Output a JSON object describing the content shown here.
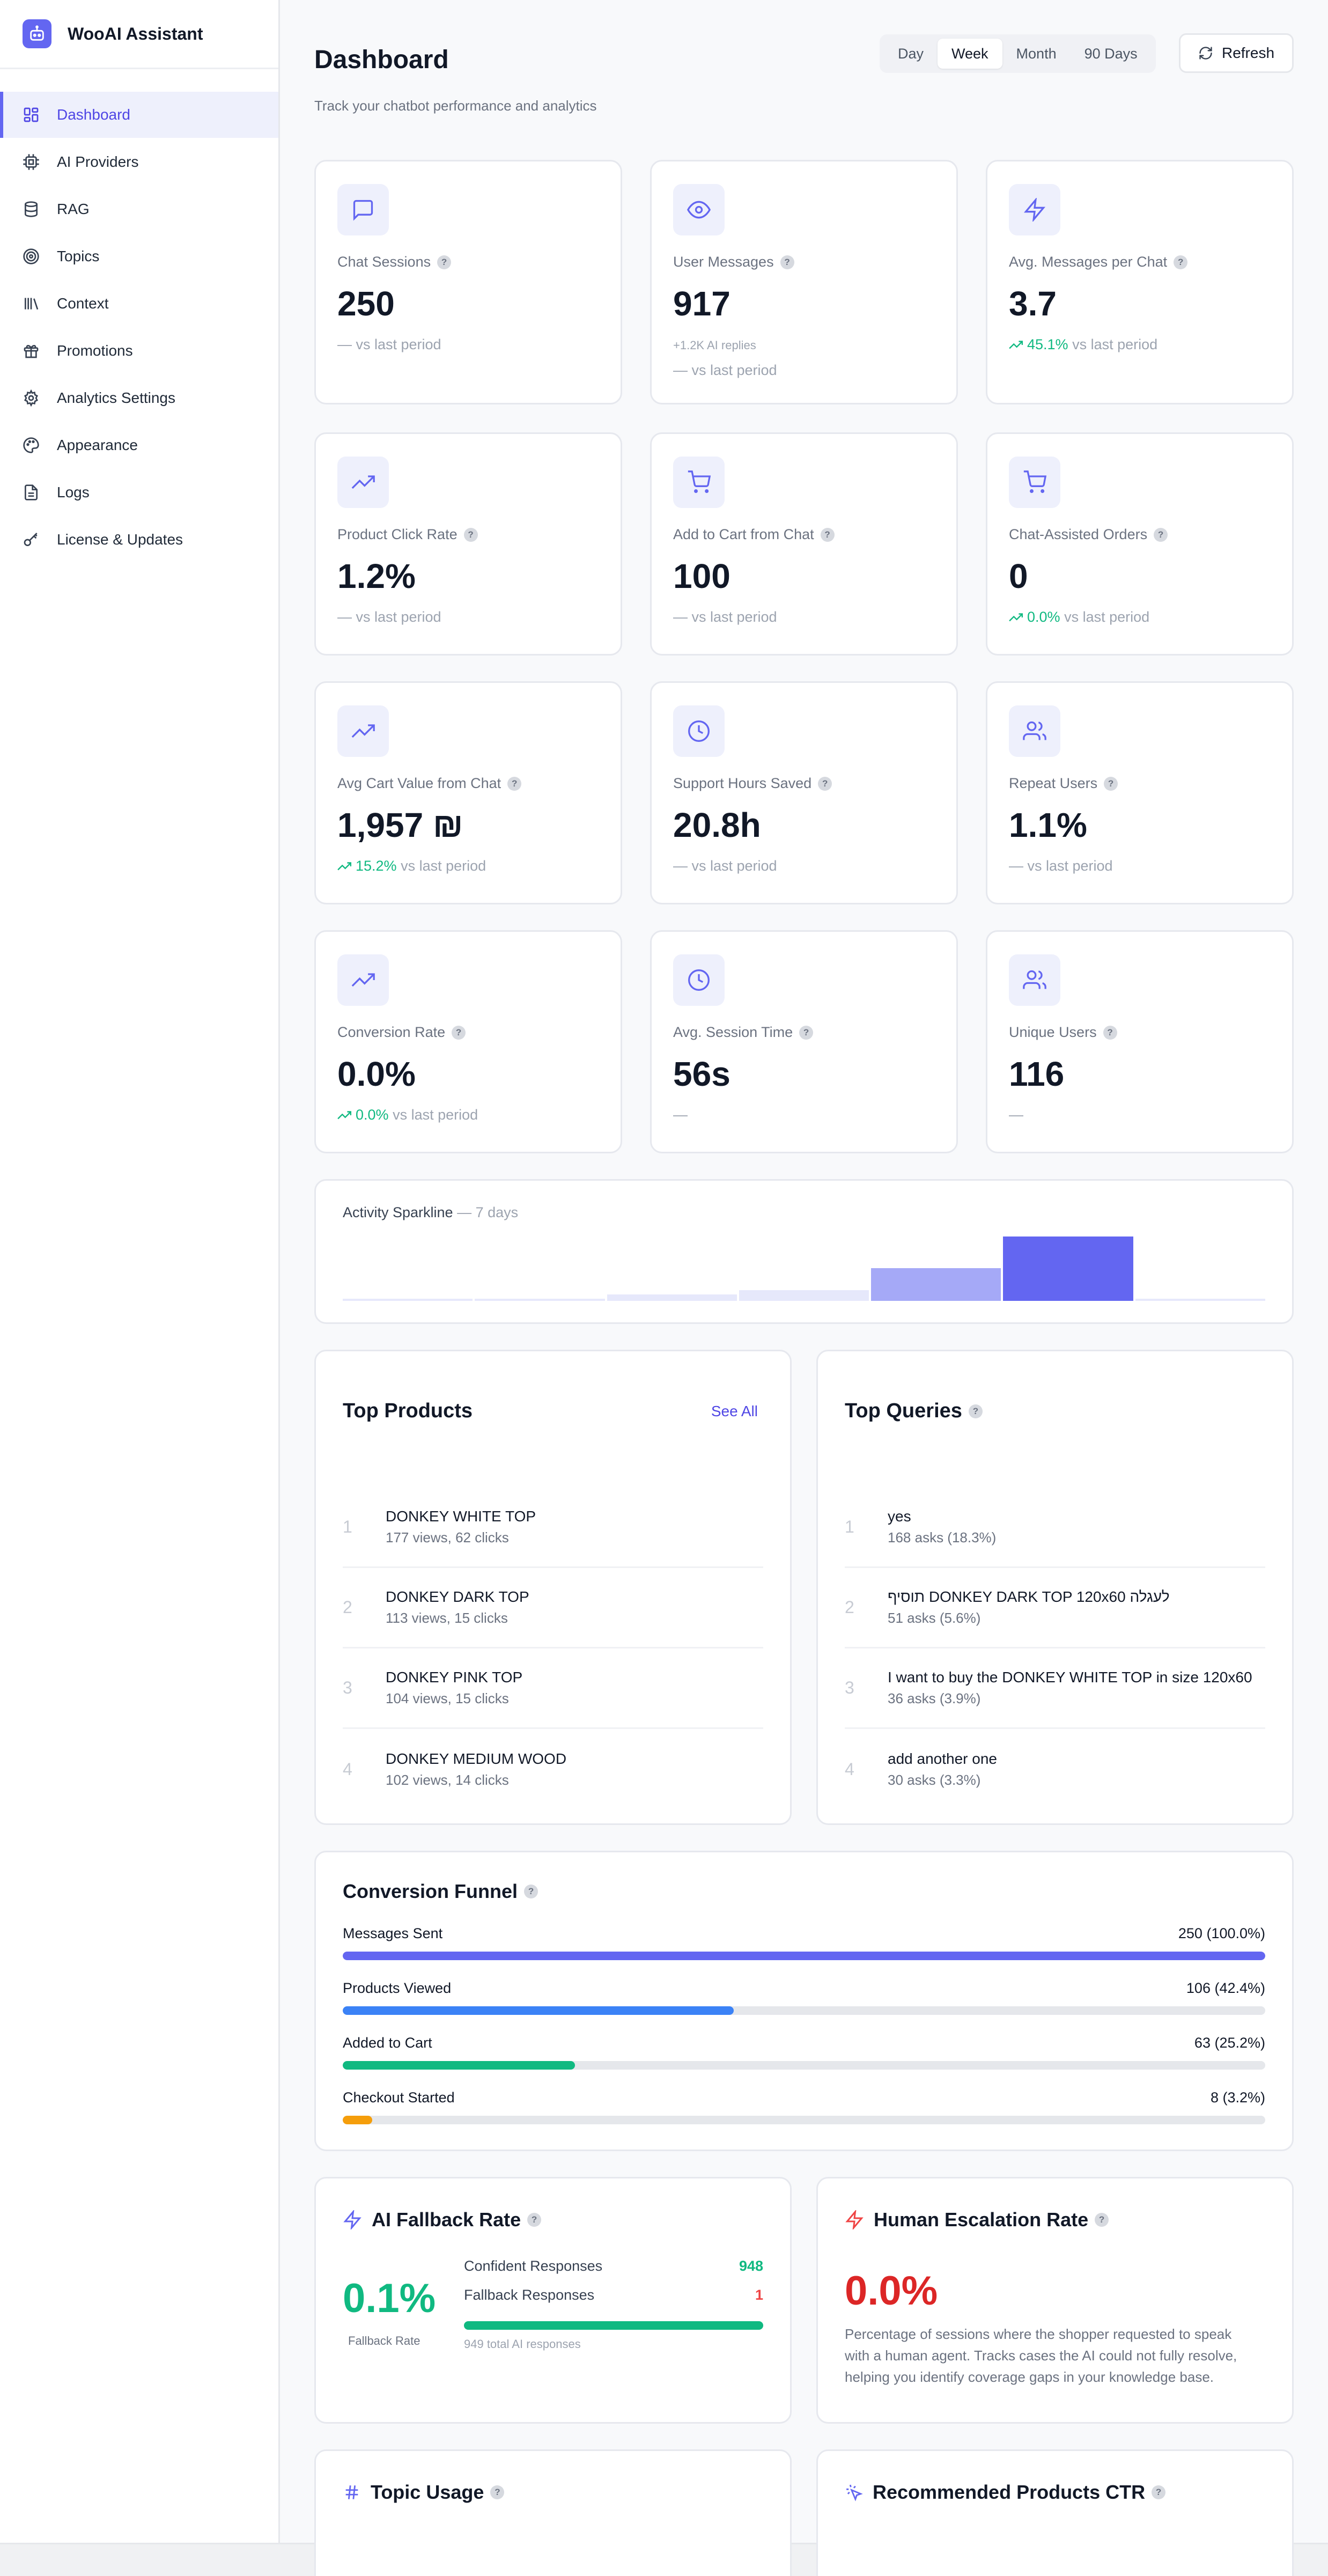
{
  "app": {
    "name": "WooAI Assistant"
  },
  "sidebar": {
    "items": [
      {
        "label": "Dashboard",
        "icon": "dashboard-grid-icon",
        "active": true
      },
      {
        "label": "AI Providers",
        "icon": "cpu-chip-icon"
      },
      {
        "label": "RAG",
        "icon": "database-icon"
      },
      {
        "label": "Topics",
        "icon": "target-icon"
      },
      {
        "label": "Context",
        "icon": "library-icon"
      },
      {
        "label": "Promotions",
        "icon": "gift-icon"
      },
      {
        "label": "Analytics Settings",
        "icon": "gear-icon"
      },
      {
        "label": "Appearance",
        "icon": "palette-icon"
      },
      {
        "label": "Logs",
        "icon": "file-text-icon"
      },
      {
        "label": "License & Updates",
        "icon": "key-icon"
      }
    ]
  },
  "header": {
    "title": "Dashboard",
    "subtitle": "Track your chatbot performance and analytics",
    "ranges": [
      "Day",
      "Week",
      "Month",
      "90 Days"
    ],
    "active_range": "Week",
    "refresh_label": "Refresh"
  },
  "metrics": [
    {
      "label": "Chat Sessions",
      "value": "250",
      "trend": "— vs last period",
      "icon": "chat-bubble-icon"
    },
    {
      "label": "User Messages",
      "value": "917",
      "sub": "+1.2K AI replies",
      "trend": "— vs last period",
      "icon": "eye-icon"
    },
    {
      "label": "Avg. Messages per Chat",
      "value": "3.7",
      "trend_value": "45.1%",
      "trend": "vs last period",
      "icon": "lightning-icon"
    },
    {
      "label": "Product Click Rate",
      "value": "1.2%",
      "trend": "— vs last period",
      "icon": "trending-up-icon"
    },
    {
      "label": "Add to Cart from Chat",
      "value": "100",
      "trend": "— vs last period",
      "icon": "cart-icon"
    },
    {
      "label": "Chat-Assisted Orders",
      "value": "0",
      "trend_value": "0.0%",
      "trend": "vs last period",
      "icon": "cart-icon"
    },
    {
      "label": "Avg Cart Value from Chat",
      "value": "1,957 ₪",
      "trend_value": "15.2%",
      "trend": "vs last period",
      "icon": "trending-up-icon"
    },
    {
      "label": "Support Hours Saved",
      "value": "20.8h",
      "trend": "— vs last period",
      "icon": "clock-icon"
    },
    {
      "label": "Repeat Users",
      "value": "1.1%",
      "trend": "— vs last period",
      "icon": "users-icon"
    },
    {
      "label": "Conversion Rate",
      "value": "0.0%",
      "trend_value": "0.0%",
      "trend": "vs last period",
      "icon": "trending-up-icon"
    },
    {
      "label": "Avg. Session Time",
      "value": "56s",
      "trend": "—",
      "icon": "clock-icon"
    },
    {
      "label": "Unique Users",
      "value": "116",
      "trend": "—",
      "icon": "users-icon"
    }
  ],
  "sparkline": {
    "title": "Activity Sparkline",
    "period": "— 7 days",
    "values": [
      1,
      1,
      6,
      10,
      30,
      59,
      1
    ],
    "colors": [
      "#e6e8fb",
      "#e6e8fb",
      "#e6e8fb",
      "#e6e8fb",
      "#a5a9f7",
      "#6366f1",
      "#e6e8fb"
    ]
  },
  "top_products": {
    "title": "Top Products",
    "see_all": "See All",
    "items": [
      {
        "rank": "1",
        "name": "DONKEY WHITE TOP",
        "meta": "177 views, 62 clicks"
      },
      {
        "rank": "2",
        "name": "DONKEY DARK TOP",
        "meta": "113 views, 15 clicks"
      },
      {
        "rank": "3",
        "name": "DONKEY PINK TOP",
        "meta": "104 views, 15 clicks"
      },
      {
        "rank": "4",
        "name": "DONKEY MEDIUM WOOD",
        "meta": "102 views, 14 clicks"
      }
    ]
  },
  "top_queries": {
    "title": "Top Queries",
    "items": [
      {
        "rank": "1",
        "name": "yes",
        "meta": "168 asks (18.3%)"
      },
      {
        "rank": "2",
        "name": "תוסיף DONKEY DARK TOP 120x60 לעגלה",
        "meta": "51 asks (5.6%)"
      },
      {
        "rank": "3",
        "name": "I want to buy the DONKEY WHITE TOP in size 120x60",
        "meta": "36 asks (3.9%)"
      },
      {
        "rank": "4",
        "name": "add another one",
        "meta": "30 asks (3.3%)"
      }
    ]
  },
  "funnel": {
    "title": "Conversion Funnel",
    "steps": [
      {
        "label": "Messages Sent",
        "value": "250 (100.0%)",
        "pct": 100,
        "color": "#6366f1"
      },
      {
        "label": "Products Viewed",
        "value": "106 (42.4%)",
        "pct": 42.4,
        "color": "#3b82f6"
      },
      {
        "label": "Added to Cart",
        "value": "63 (25.2%)",
        "pct": 25.2,
        "color": "#10b981"
      },
      {
        "label": "Checkout Started",
        "value": "8 (3.2%)",
        "pct": 3.2,
        "color": "#f59e0b"
      }
    ]
  },
  "ai_fallback": {
    "title": "AI Fallback Rate",
    "rate": "0.1%",
    "caption": "Fallback Rate",
    "confident_label": "Confident Responses",
    "confident_value": "948",
    "fallback_label": "Fallback Responses",
    "fallback_value": "1",
    "total": "949 total AI responses"
  },
  "escalation": {
    "title": "Human Escalation Rate",
    "rate": "0.0%",
    "description": "Percentage of sessions where the shopper requested to speak with a human agent. Tracks cases the AI could not fully resolve, helping you identify coverage gaps in your knowledge base."
  },
  "topic_usage": {
    "title": "Topic Usage"
  },
  "recommended_ctr": {
    "title": "Recommended Products CTR"
  }
}
